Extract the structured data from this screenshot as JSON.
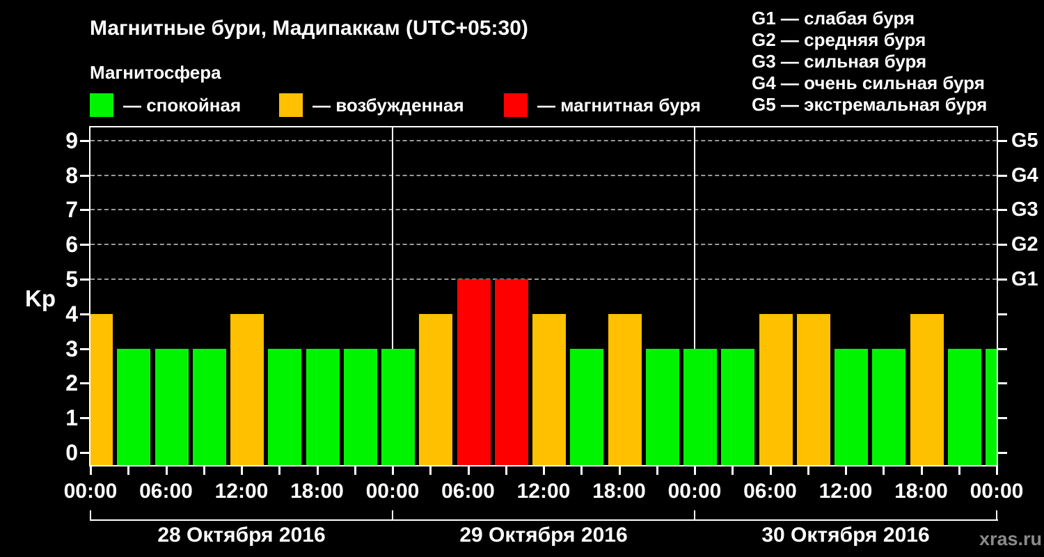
{
  "header": {
    "title": "Магнитные бури, Мадипаккам (UTC+05:30)",
    "subtitle": "Магнитосфера"
  },
  "legend": {
    "items": [
      {
        "id": "quiet",
        "label": "— спокойная",
        "color": "#00f400"
      },
      {
        "id": "excited",
        "label": "— возбужденная",
        "color": "#ffc000"
      },
      {
        "id": "storm",
        "label": "— магнитная буря",
        "color": "#ff0000"
      }
    ]
  },
  "g_legend": {
    "items": [
      "G1 — слабая буря",
      "G2 — средняя буря",
      "G3 — сильная буря",
      "G4 — очень сильная буря",
      "G5 — экстремальная буря"
    ]
  },
  "axes": {
    "y_label": "Kp",
    "y_ticks": [
      "0",
      "1",
      "2",
      "3",
      "4",
      "5",
      "6",
      "7",
      "8",
      "9"
    ],
    "g_labels": [
      {
        "label": "G1",
        "kp": 5
      },
      {
        "label": "G2",
        "kp": 6
      },
      {
        "label": "G3",
        "kp": 7
      },
      {
        "label": "G4",
        "kp": 8
      },
      {
        "label": "G5",
        "kp": 9
      }
    ],
    "x_ticks": [
      {
        "hour": 0,
        "label": "00:00"
      },
      {
        "hour": 6,
        "label": "06:00"
      },
      {
        "hour": 12,
        "label": "12:00"
      },
      {
        "hour": 18,
        "label": "18:00"
      },
      {
        "hour": 24,
        "label": "00:00"
      },
      {
        "hour": 30,
        "label": "06:00"
      },
      {
        "hour": 36,
        "label": "12:00"
      },
      {
        "hour": 42,
        "label": "18:00"
      },
      {
        "hour": 48,
        "label": "00:00"
      },
      {
        "hour": 54,
        "label": "06:00"
      },
      {
        "hour": 60,
        "label": "12:00"
      },
      {
        "hour": 66,
        "label": "18:00"
      },
      {
        "hour": 72,
        "label": "00:00"
      }
    ],
    "x_minor_tick_step_hours": 3,
    "day_span_hours": 24,
    "dates": [
      "28 Октября 2016",
      "29 Октября 2016",
      "30 Октября 2016"
    ]
  },
  "watermark": "xras.ru",
  "chart_data": {
    "type": "bar",
    "title": "Магнитные бури, Мадипаккам (UTC+05:30)",
    "ylabel": "Kp",
    "ylim": [
      0,
      9.4
    ],
    "grid": "dashed horizontal lines at Kp 5..9 (G1..G5)",
    "legend_position": "top",
    "x_unit": "hours from start of 28 Октября 2016, 3-hour Kp intervals",
    "kp_color_rule": {
      "quiet_max": 3,
      "excited": 4,
      "storm_min": 5
    },
    "color_map": {
      "quiet": "#00f400",
      "excited": "#ffc000",
      "storm": "#ff0000"
    },
    "storm_levels": {
      "G1": 5,
      "G2": 6,
      "G3": 7,
      "G4": 8,
      "G5": 9
    },
    "points": [
      {
        "hour": 0,
        "time": "00:00",
        "kp": 4,
        "state": "excited"
      },
      {
        "hour": 3,
        "time": "03:00",
        "kp": 3,
        "state": "quiet"
      },
      {
        "hour": 6,
        "time": "06:00",
        "kp": 3,
        "state": "quiet"
      },
      {
        "hour": 9,
        "time": "09:00",
        "kp": 3,
        "state": "quiet"
      },
      {
        "hour": 12,
        "time": "12:00",
        "kp": 4,
        "state": "excited"
      },
      {
        "hour": 15,
        "time": "15:00",
        "kp": 3,
        "state": "quiet"
      },
      {
        "hour": 18,
        "time": "18:00",
        "kp": 3,
        "state": "quiet"
      },
      {
        "hour": 21,
        "time": "21:00",
        "kp": 3,
        "state": "quiet"
      },
      {
        "hour": 24,
        "time": "00:00",
        "kp": 3,
        "state": "quiet"
      },
      {
        "hour": 27,
        "time": "03:00",
        "kp": 4,
        "state": "excited"
      },
      {
        "hour": 30,
        "time": "06:00",
        "kp": 5,
        "state": "storm"
      },
      {
        "hour": 33,
        "time": "09:00",
        "kp": 5,
        "state": "storm"
      },
      {
        "hour": 36,
        "time": "12:00",
        "kp": 4,
        "state": "excited"
      },
      {
        "hour": 39,
        "time": "15:00",
        "kp": 3,
        "state": "quiet"
      },
      {
        "hour": 42,
        "time": "18:00",
        "kp": 4,
        "state": "excited"
      },
      {
        "hour": 45,
        "time": "21:00",
        "kp": 3,
        "state": "quiet"
      },
      {
        "hour": 48,
        "time": "00:00",
        "kp": 3,
        "state": "quiet"
      },
      {
        "hour": 51,
        "time": "03:00",
        "kp": 3,
        "state": "quiet"
      },
      {
        "hour": 54,
        "time": "06:00",
        "kp": 4,
        "state": "excited"
      },
      {
        "hour": 57,
        "time": "09:00",
        "kp": 4,
        "state": "excited"
      },
      {
        "hour": 60,
        "time": "12:00",
        "kp": 3,
        "state": "quiet"
      },
      {
        "hour": 63,
        "time": "15:00",
        "kp": 3,
        "state": "quiet"
      },
      {
        "hour": 66,
        "time": "18:00",
        "kp": 4,
        "state": "excited"
      },
      {
        "hour": 69,
        "time": "21:00",
        "kp": 3,
        "state": "quiet"
      },
      {
        "hour": 72,
        "time": "00:00",
        "kp": 3,
        "state": "quiet"
      }
    ]
  }
}
